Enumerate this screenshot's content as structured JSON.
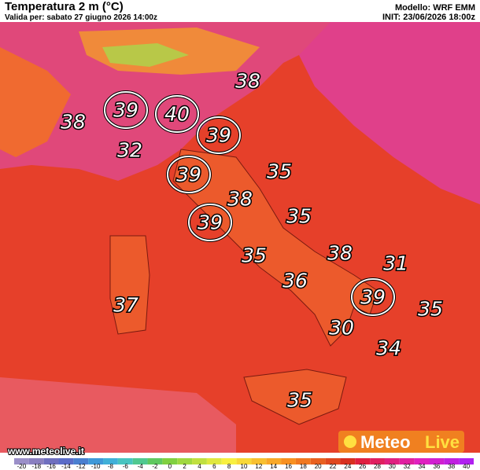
{
  "header": {
    "title": "Temperatura 2 m (°C)",
    "subtitle": "Valida per: sabato 27 giugno 2026 14:00z",
    "model": "Modello: WRF EMM",
    "init": "INIT: 23/06/2026 18:00z"
  },
  "labels": [
    {
      "value": 39,
      "circled": true
    },
    {
      "value": 40,
      "circled": true
    },
    {
      "value": 39,
      "circled": true
    },
    {
      "value": 39,
      "circled": true
    },
    {
      "value": 39,
      "circled": true
    },
    {
      "value": 39,
      "circled": true
    },
    {
      "value": 38,
      "circled": false
    },
    {
      "value": 38,
      "circled": false
    },
    {
      "value": 32,
      "circled": false
    },
    {
      "value": 35,
      "circled": false
    },
    {
      "value": 38,
      "circled": false
    },
    {
      "value": 35,
      "circled": false
    },
    {
      "value": 35,
      "circled": false
    },
    {
      "value": 38,
      "circled": false
    },
    {
      "value": 31,
      "circled": false
    },
    {
      "value": 36,
      "circled": false
    },
    {
      "value": 37,
      "circled": false
    },
    {
      "value": 35,
      "circled": false
    },
    {
      "value": 30,
      "circled": false
    },
    {
      "value": 34,
      "circled": false
    },
    {
      "value": 35,
      "circled": false
    }
  ],
  "scale": {
    "ticks": [
      -20,
      -18,
      -16,
      -14,
      -12,
      -10,
      -8,
      -6,
      -4,
      -2,
      0,
      2,
      4,
      6,
      8,
      10,
      12,
      14,
      16,
      18,
      20,
      22,
      24,
      26,
      28,
      30,
      32,
      34,
      36,
      38,
      40
    ],
    "colors": [
      "#9b8fc8",
      "#8a7fc0",
      "#6f6fbf",
      "#5a6cc8",
      "#4a7fd0",
      "#3f98d8",
      "#40b0d8",
      "#48c4c0",
      "#50c890",
      "#60c860",
      "#80d040",
      "#a0d840",
      "#c0e040",
      "#e0e840",
      "#f8f040",
      "#f8d838",
      "#f8c030",
      "#f8a828",
      "#f89020",
      "#f07820",
      "#e86020",
      "#e04820",
      "#d83020",
      "#e02040",
      "#e02060",
      "#e02080",
      "#e020a0",
      "#e020c0",
      "#d020d0",
      "#c020e0",
      "#b020f0"
    ]
  },
  "footer": {
    "website": "www.meteolive.it",
    "logo_left": "Meteo",
    "logo_right": "Live"
  }
}
